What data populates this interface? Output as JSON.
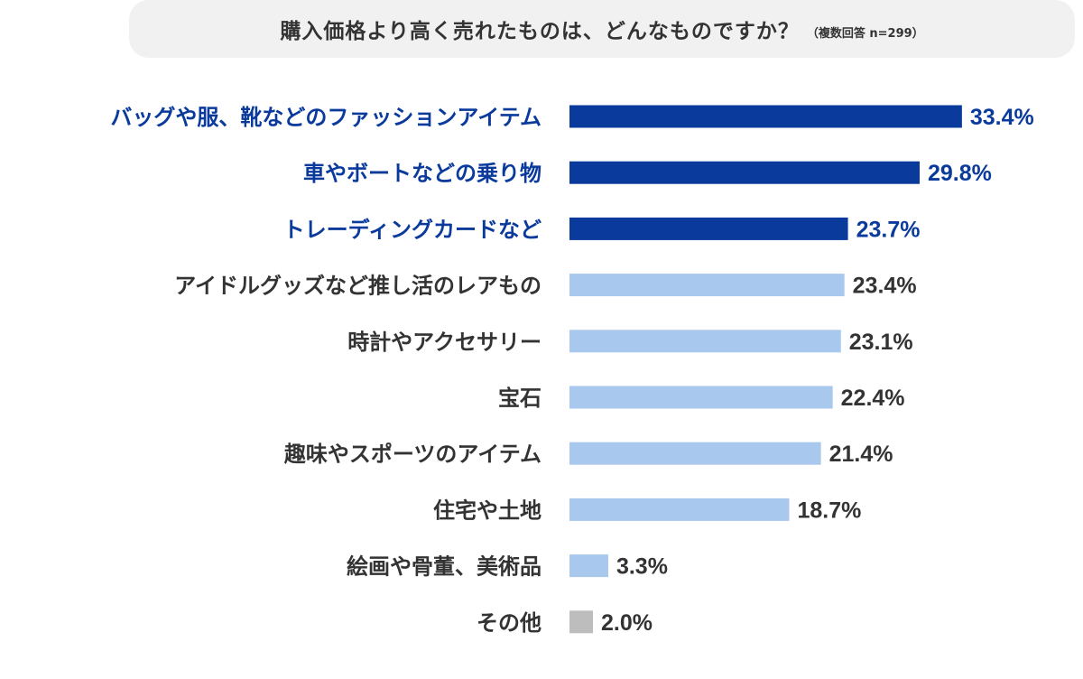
{
  "title": {
    "main": "購入価格より高く売れたものは、どんなものですか？",
    "sub": "（複数回答 n=299）"
  },
  "colors": {
    "highlight": "#0a3a9c",
    "normal": "#a8c8ee",
    "other": "#bdbdbd",
    "label_highlight": "#0a3a9c",
    "label_normal": "#333333"
  },
  "chart_data": {
    "type": "bar",
    "orientation": "horizontal",
    "title": "購入価格より高く売れたものは、どんなものですか？",
    "subtitle": "（複数回答 n=299）",
    "unit": "%",
    "categories": [
      "バッグや服、靴などのファッションアイテム",
      "車やボートなどの乗り物",
      "トレーディングカードなど",
      "アイドルグッズなど推し活のレアもの",
      "時計やアクセサリー",
      "宝石",
      "趣味やスポーツのアイテム",
      "住宅や土地",
      "絵画や骨董、美術品",
      "その他"
    ],
    "values": [
      33.4,
      29.8,
      23.7,
      23.4,
      23.1,
      22.4,
      21.4,
      18.7,
      3.3,
      2.0
    ],
    "value_labels": [
      "33.4%",
      "29.8%",
      "23.7%",
      "23.4%",
      "23.1%",
      "22.4%",
      "21.4%",
      "18.7%",
      "3.3%",
      "2.0%"
    ],
    "highlighted": [
      true,
      true,
      true,
      false,
      false,
      false,
      false,
      false,
      false,
      false
    ],
    "is_other": [
      false,
      false,
      false,
      false,
      false,
      false,
      false,
      false,
      false,
      true
    ],
    "grid": false,
    "legend": "none"
  }
}
